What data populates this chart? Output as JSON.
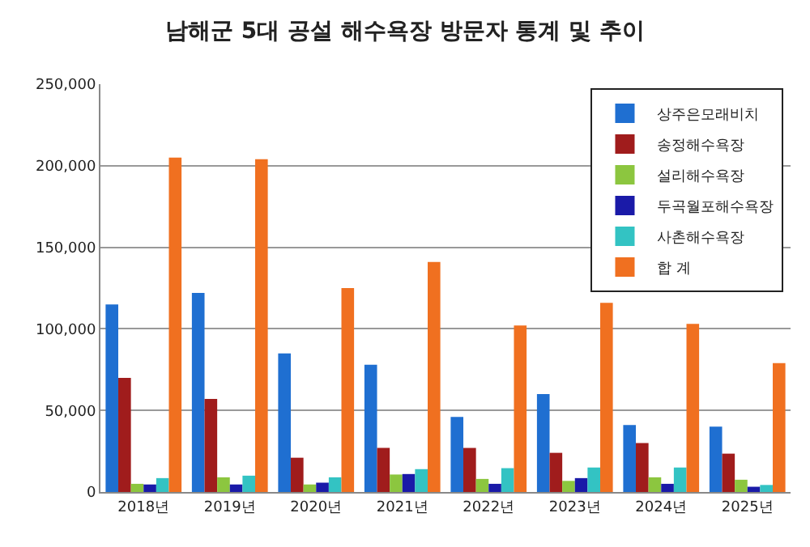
{
  "chart_data": {
    "type": "bar",
    "title": "남해군 5대 공설 해수욕장 방문자 통계 및 추이",
    "categories": [
      "2018년",
      "2019년",
      "2020년",
      "2021년",
      "2022년",
      "2023년",
      "2024년",
      "2025년"
    ],
    "series": [
      {
        "name": "상주은모래비치",
        "color": "#1f6fd1",
        "values": [
          115000,
          122000,
          85000,
          78000,
          46000,
          60000,
          41000,
          40000
        ]
      },
      {
        "name": "송정해수욕장",
        "color": "#a01c1c",
        "values": [
          70000,
          57000,
          21000,
          27000,
          27000,
          24000,
          30000,
          23500
        ]
      },
      {
        "name": "설리해수욕장",
        "color": "#8cc63f",
        "values": [
          5000,
          9000,
          4600,
          10700,
          8000,
          6800,
          9000,
          7500
        ]
      },
      {
        "name": "두곡월포해수욕장",
        "color": "#1a1aa8",
        "values": [
          4600,
          4600,
          5700,
          11000,
          5000,
          8500,
          5000,
          3200
        ]
      },
      {
        "name": "사촌해수욕장",
        "color": "#33c3c3",
        "values": [
          8500,
          10000,
          9000,
          14000,
          14600,
          15000,
          15000,
          4300
        ]
      },
      {
        "name": "합 계",
        "color": "#f07020",
        "values": [
          205000,
          204000,
          125000,
          141000,
          102000,
          116000,
          103000,
          79000
        ]
      }
    ],
    "ylim": [
      0,
      250000
    ],
    "yticks": [
      {
        "value": 0,
        "label": "0"
      },
      {
        "value": 50000,
        "label": "50,000"
      },
      {
        "value": 100000,
        "label": "100,000"
      },
      {
        "value": 150000,
        "label": "150,000"
      },
      {
        "value": 200000,
        "label": "200,000"
      },
      {
        "value": 250000,
        "label": "250,000"
      }
    ],
    "grid": "y",
    "legend": "top right"
  }
}
